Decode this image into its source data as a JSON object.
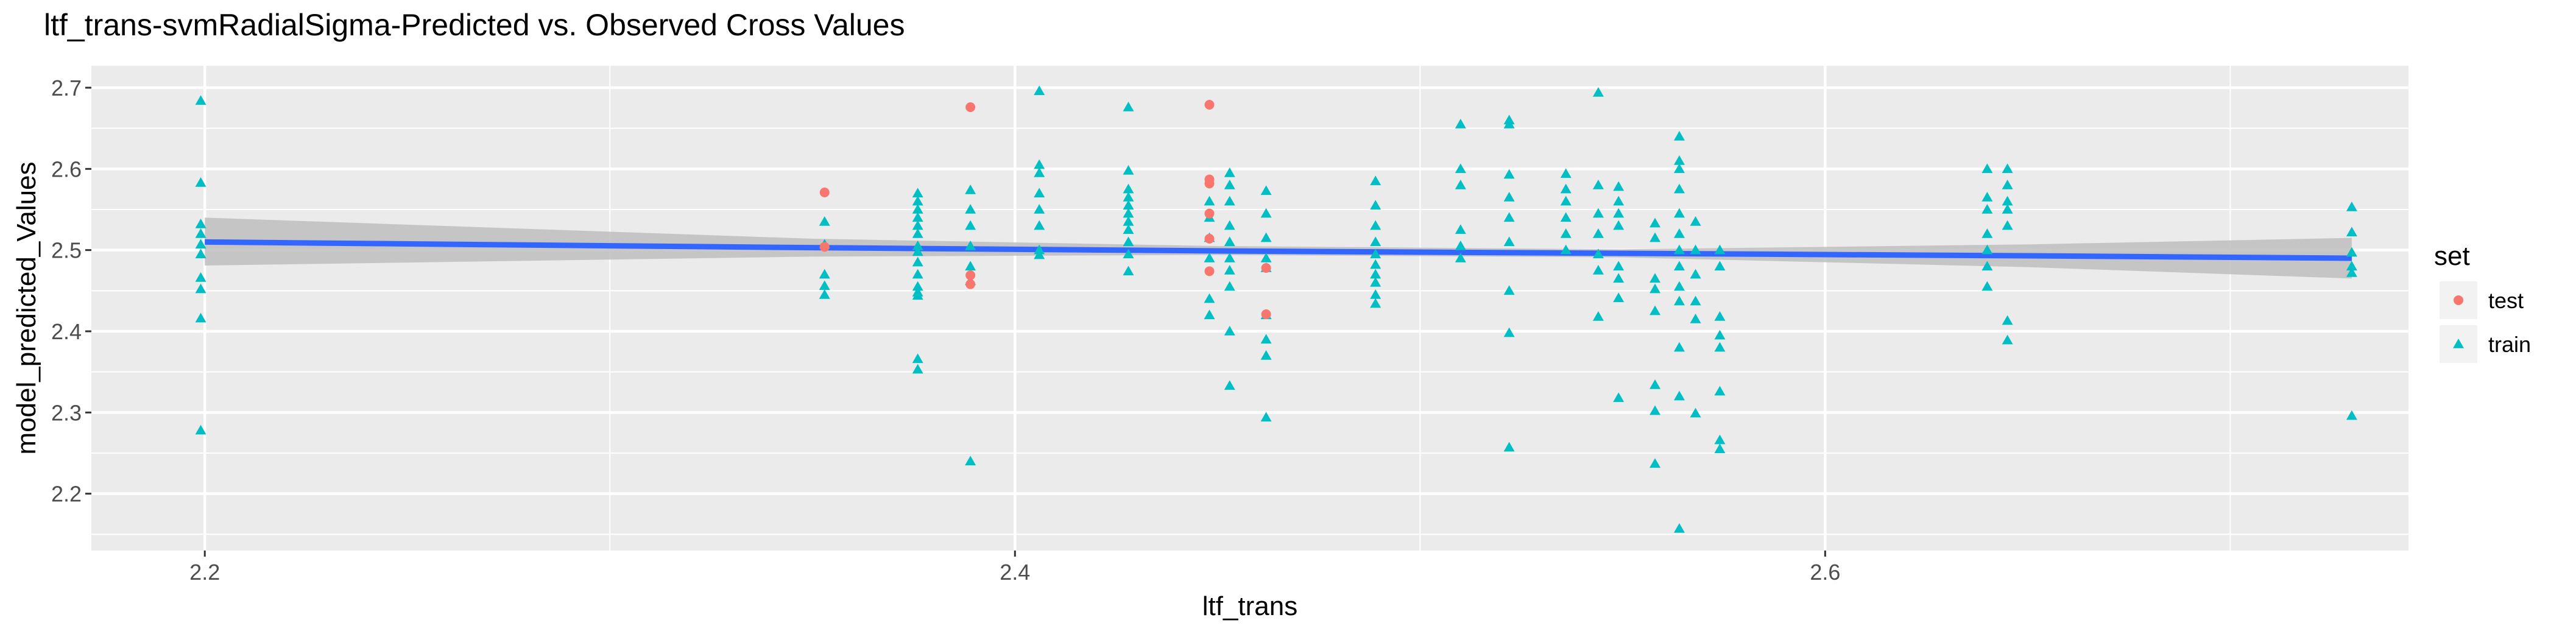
{
  "chart_data": {
    "type": "scatter",
    "title": "ltf_trans-svmRadialSigma-Predicted vs. Observed Cross Values",
    "xlabel": "ltf_trans",
    "ylabel": "model_predicted_Values",
    "xlim": [
      2.172,
      2.744
    ],
    "ylim": [
      2.13,
      2.727
    ],
    "x_ticks": [
      2.2,
      2.4,
      2.6
    ],
    "x_tick_labels": [
      "2.2",
      "2.4",
      "2.6"
    ],
    "y_ticks": [
      2.2,
      2.3,
      2.4,
      2.5,
      2.6,
      2.7
    ],
    "y_tick_labels": [
      "2.2",
      "2.3",
      "2.4",
      "2.5",
      "2.6",
      "2.7"
    ],
    "grid": true,
    "legend": {
      "title": "set",
      "position": "right",
      "entries": [
        {
          "label": "test",
          "shape": "circle",
          "color": "#F8766D"
        },
        {
          "label": "train",
          "shape": "triangle",
          "color": "#00BFC4"
        }
      ]
    },
    "colors": {
      "panel_bg": "#EBEBEB",
      "grid": "#FFFFFF",
      "test": "#F8766D",
      "train": "#00BFC4",
      "fit_line": "#3366FF",
      "ribbon": "#BEBEBE"
    },
    "smooth": {
      "method": "lm",
      "x": [
        2.2,
        2.35,
        2.45,
        2.55,
        2.65,
        2.73
      ],
      "y": [
        2.51,
        2.503,
        2.499,
        2.496,
        2.493,
        2.49
      ],
      "lower": [
        2.481,
        2.492,
        2.494,
        2.491,
        2.479,
        2.465
      ],
      "upper": [
        2.54,
        2.514,
        2.505,
        2.501,
        2.507,
        2.515
      ]
    },
    "series": [
      {
        "name": "test",
        "points": [
          [
            2.353,
            2.571
          ],
          [
            2.353,
            2.504
          ],
          [
            2.389,
            2.676
          ],
          [
            2.389,
            2.469
          ],
          [
            2.389,
            2.458
          ],
          [
            2.448,
            2.679
          ],
          [
            2.448,
            2.587
          ],
          [
            2.448,
            2.582
          ],
          [
            2.448,
            2.545
          ],
          [
            2.448,
            2.514
          ],
          [
            2.448,
            2.474
          ],
          [
            2.462,
            2.478
          ],
          [
            2.462,
            2.421
          ]
        ]
      },
      {
        "name": "train",
        "points": [
          [
            2.199,
            2.684
          ],
          [
            2.199,
            2.583
          ],
          [
            2.199,
            2.532
          ],
          [
            2.199,
            2.52
          ],
          [
            2.199,
            2.507
          ],
          [
            2.199,
            2.495
          ],
          [
            2.199,
            2.466
          ],
          [
            2.199,
            2.452
          ],
          [
            2.199,
            2.416
          ],
          [
            2.199,
            2.278
          ],
          [
            2.353,
            2.535
          ],
          [
            2.353,
            2.507
          ],
          [
            2.353,
            2.47
          ],
          [
            2.353,
            2.456
          ],
          [
            2.353,
            2.445
          ],
          [
            2.376,
            2.57
          ],
          [
            2.376,
            2.56
          ],
          [
            2.376,
            2.55
          ],
          [
            2.376,
            2.54
          ],
          [
            2.376,
            2.53
          ],
          [
            2.376,
            2.52
          ],
          [
            2.376,
            2.505
          ],
          [
            2.376,
            2.498
          ],
          [
            2.376,
            2.485
          ],
          [
            2.376,
            2.47
          ],
          [
            2.376,
            2.455
          ],
          [
            2.376,
            2.448
          ],
          [
            2.376,
            2.444
          ],
          [
            2.376,
            2.366
          ],
          [
            2.376,
            2.353
          ],
          [
            2.389,
            2.574
          ],
          [
            2.389,
            2.55
          ],
          [
            2.389,
            2.53
          ],
          [
            2.389,
            2.505
          ],
          [
            2.389,
            2.48
          ],
          [
            2.389,
            2.462
          ],
          [
            2.389,
            2.24
          ],
          [
            2.406,
            2.696
          ],
          [
            2.406,
            2.605
          ],
          [
            2.406,
            2.595
          ],
          [
            2.406,
            2.57
          ],
          [
            2.406,
            2.55
          ],
          [
            2.406,
            2.53
          ],
          [
            2.406,
            2.5
          ],
          [
            2.406,
            2.494
          ],
          [
            2.428,
            2.676
          ],
          [
            2.428,
            2.598
          ],
          [
            2.428,
            2.575
          ],
          [
            2.428,
            2.565
          ],
          [
            2.428,
            2.555
          ],
          [
            2.428,
            2.545
          ],
          [
            2.428,
            2.535
          ],
          [
            2.428,
            2.525
          ],
          [
            2.428,
            2.51
          ],
          [
            2.428,
            2.495
          ],
          [
            2.428,
            2.474
          ],
          [
            2.448,
            2.56
          ],
          [
            2.448,
            2.54
          ],
          [
            2.448,
            2.515
          ],
          [
            2.448,
            2.49
          ],
          [
            2.448,
            2.44
          ],
          [
            2.448,
            2.42
          ],
          [
            2.453,
            2.595
          ],
          [
            2.453,
            2.58
          ],
          [
            2.453,
            2.56
          ],
          [
            2.453,
            2.53
          ],
          [
            2.453,
            2.51
          ],
          [
            2.453,
            2.49
          ],
          [
            2.453,
            2.475
          ],
          [
            2.453,
            2.455
          ],
          [
            2.453,
            2.4
          ],
          [
            2.453,
            2.333
          ],
          [
            2.462,
            2.573
          ],
          [
            2.462,
            2.545
          ],
          [
            2.462,
            2.515
          ],
          [
            2.462,
            2.49
          ],
          [
            2.462,
            2.478
          ],
          [
            2.462,
            2.42
          ],
          [
            2.462,
            2.39
          ],
          [
            2.462,
            2.37
          ],
          [
            2.462,
            2.294
          ],
          [
            2.489,
            2.585
          ],
          [
            2.489,
            2.555
          ],
          [
            2.489,
            2.53
          ],
          [
            2.489,
            2.51
          ],
          [
            2.489,
            2.495
          ],
          [
            2.489,
            2.482
          ],
          [
            2.489,
            2.47
          ],
          [
            2.489,
            2.46
          ],
          [
            2.489,
            2.445
          ],
          [
            2.489,
            2.434
          ],
          [
            2.51,
            2.655
          ],
          [
            2.51,
            2.6
          ],
          [
            2.51,
            2.58
          ],
          [
            2.51,
            2.525
          ],
          [
            2.51,
            2.505
          ],
          [
            2.51,
            2.49
          ],
          [
            2.522,
            2.66
          ],
          [
            2.522,
            2.655
          ],
          [
            2.522,
            2.593
          ],
          [
            2.522,
            2.565
          ],
          [
            2.522,
            2.54
          ],
          [
            2.522,
            2.51
          ],
          [
            2.522,
            2.45
          ],
          [
            2.522,
            2.398
          ],
          [
            2.522,
            2.257
          ],
          [
            2.536,
            2.594
          ],
          [
            2.536,
            2.575
          ],
          [
            2.536,
            2.56
          ],
          [
            2.536,
            2.54
          ],
          [
            2.536,
            2.52
          ],
          [
            2.536,
            2.5
          ],
          [
            2.544,
            2.694
          ],
          [
            2.544,
            2.58
          ],
          [
            2.544,
            2.545
          ],
          [
            2.544,
            2.52
          ],
          [
            2.544,
            2.495
          ],
          [
            2.544,
            2.475
          ],
          [
            2.544,
            2.418
          ],
          [
            2.549,
            2.578
          ],
          [
            2.549,
            2.56
          ],
          [
            2.549,
            2.545
          ],
          [
            2.549,
            2.53
          ],
          [
            2.549,
            2.48
          ],
          [
            2.549,
            2.465
          ],
          [
            2.549,
            2.441
          ],
          [
            2.549,
            2.318
          ],
          [
            2.558,
            2.533
          ],
          [
            2.558,
            2.515
          ],
          [
            2.558,
            2.465
          ],
          [
            2.558,
            2.452
          ],
          [
            2.558,
            2.425
          ],
          [
            2.558,
            2.334
          ],
          [
            2.558,
            2.302
          ],
          [
            2.558,
            2.237
          ],
          [
            2.564,
            2.64
          ],
          [
            2.564,
            2.61
          ],
          [
            2.564,
            2.6
          ],
          [
            2.564,
            2.575
          ],
          [
            2.564,
            2.545
          ],
          [
            2.564,
            2.52
          ],
          [
            2.564,
            2.5
          ],
          [
            2.564,
            2.48
          ],
          [
            2.564,
            2.455
          ],
          [
            2.564,
            2.437
          ],
          [
            2.564,
            2.38
          ],
          [
            2.564,
            2.32
          ],
          [
            2.564,
            2.157
          ],
          [
            2.568,
            2.535
          ],
          [
            2.568,
            2.5
          ],
          [
            2.568,
            2.47
          ],
          [
            2.568,
            2.437
          ],
          [
            2.568,
            2.415
          ],
          [
            2.568,
            2.299
          ],
          [
            2.574,
            2.5
          ],
          [
            2.574,
            2.48
          ],
          [
            2.574,
            2.418
          ],
          [
            2.574,
            2.395
          ],
          [
            2.574,
            2.38
          ],
          [
            2.574,
            2.326
          ],
          [
            2.574,
            2.266
          ],
          [
            2.574,
            2.255
          ],
          [
            2.64,
            2.6
          ],
          [
            2.64,
            2.565
          ],
          [
            2.64,
            2.55
          ],
          [
            2.64,
            2.52
          ],
          [
            2.64,
            2.5
          ],
          [
            2.64,
            2.48
          ],
          [
            2.64,
            2.455
          ],
          [
            2.645,
            2.6
          ],
          [
            2.645,
            2.58
          ],
          [
            2.645,
            2.56
          ],
          [
            2.645,
            2.55
          ],
          [
            2.645,
            2.53
          ],
          [
            2.645,
            2.413
          ],
          [
            2.645,
            2.389
          ],
          [
            2.73,
            2.553
          ],
          [
            2.73,
            2.522
          ],
          [
            2.73,
            2.497
          ],
          [
            2.73,
            2.48
          ],
          [
            2.73,
            2.472
          ],
          [
            2.73,
            2.296
          ]
        ]
      }
    ]
  }
}
